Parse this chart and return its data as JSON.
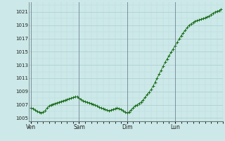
{
  "background_color": "#cce8e8",
  "plot_bg_color": "#cce8e8",
  "line_color": "#1a6e1a",
  "marker_color": "#1a6e1a",
  "grid_color_major": "#aacccc",
  "grid_color_minor": "#bbdddd",
  "tick_label_color": "#222222",
  "vline_color": "#556677",
  "spine_color": "#667777",
  "ylim": [
    1004.5,
    1022.5
  ],
  "yticks": [
    1005,
    1007,
    1009,
    1011,
    1013,
    1015,
    1017,
    1019,
    1021
  ],
  "xtick_labels": [
    "Ven",
    "Sam",
    "Dim",
    "Lun"
  ],
  "xtick_positions": [
    0,
    24,
    48,
    72
  ],
  "vline_positions": [
    0,
    24,
    48,
    72
  ],
  "y_values": [
    1006.5,
    1006.4,
    1006.2,
    1006.0,
    1005.9,
    1005.8,
    1005.9,
    1006.1,
    1006.5,
    1006.8,
    1007.0,
    1007.1,
    1007.2,
    1007.3,
    1007.4,
    1007.5,
    1007.6,
    1007.7,
    1007.8,
    1007.9,
    1008.0,
    1008.1,
    1008.2,
    1008.2,
    1008.0,
    1007.8,
    1007.6,
    1007.5,
    1007.4,
    1007.3,
    1007.2,
    1007.1,
    1007.0,
    1006.8,
    1006.6,
    1006.5,
    1006.4,
    1006.3,
    1006.2,
    1006.1,
    1006.2,
    1006.3,
    1006.4,
    1006.5,
    1006.4,
    1006.3,
    1006.1,
    1005.9,
    1005.8,
    1005.9,
    1006.2,
    1006.5,
    1006.8,
    1007.0,
    1007.2,
    1007.4,
    1007.7,
    1008.1,
    1008.5,
    1008.9,
    1009.3,
    1009.8,
    1010.4,
    1011.0,
    1011.6,
    1012.2,
    1012.8,
    1013.4,
    1013.9,
    1014.4,
    1014.9,
    1015.4,
    1015.9,
    1016.4,
    1016.9,
    1017.4,
    1017.8,
    1018.2,
    1018.6,
    1019.0,
    1019.2,
    1019.4,
    1019.6,
    1019.7,
    1019.8,
    1019.9,
    1020.0,
    1020.1,
    1020.2,
    1020.4,
    1020.6,
    1020.8,
    1021.0,
    1021.1,
    1021.2,
    1021.4
  ]
}
